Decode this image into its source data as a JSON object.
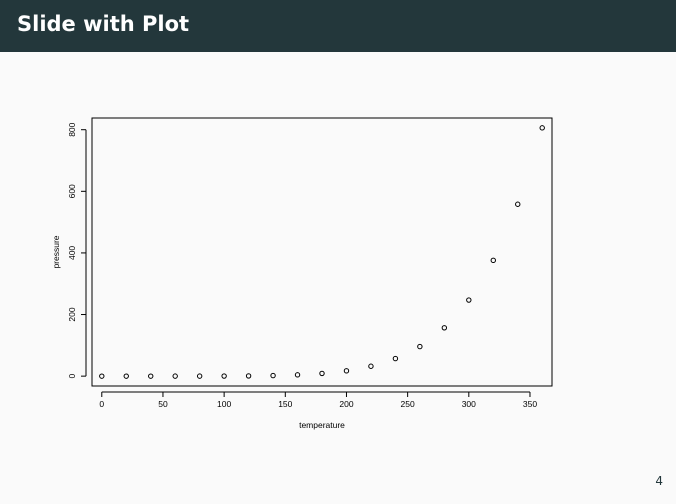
{
  "slide": {
    "title": "Slide with Plot",
    "page_number": "4"
  },
  "colors": {
    "header_background": "#23373b",
    "header_text": "#ffffff",
    "slide_background": "#fafafa",
    "plot_ink": "#000000"
  },
  "chart_data": {
    "type": "scatter",
    "title": "",
    "xlabel": "temperature",
    "ylabel": "pressure",
    "xlim": [
      -8,
      368
    ],
    "ylim": [
      -32,
      838
    ],
    "x_ticks": [
      0,
      50,
      100,
      150,
      200,
      250,
      300,
      350
    ],
    "y_ticks": [
      0,
      200,
      400,
      600,
      800
    ],
    "grid": false,
    "legend": "none",
    "marker": "open-circle",
    "points": [
      {
        "x": 0,
        "y": 0.0002
      },
      {
        "x": 20,
        "y": 0.0012
      },
      {
        "x": 40,
        "y": 0.006
      },
      {
        "x": 60,
        "y": 0.03
      },
      {
        "x": 80,
        "y": 0.09
      },
      {
        "x": 100,
        "y": 0.27
      },
      {
        "x": 120,
        "y": 0.75
      },
      {
        "x": 140,
        "y": 1.85
      },
      {
        "x": 160,
        "y": 4.2
      },
      {
        "x": 180,
        "y": 8.8
      },
      {
        "x": 200,
        "y": 17.3
      },
      {
        "x": 220,
        "y": 32.1
      },
      {
        "x": 240,
        "y": 57
      },
      {
        "x": 260,
        "y": 96
      },
      {
        "x": 280,
        "y": 157
      },
      {
        "x": 300,
        "y": 247
      },
      {
        "x": 320,
        "y": 376
      },
      {
        "x": 340,
        "y": 558
      },
      {
        "x": 360,
        "y": 806
      }
    ]
  }
}
